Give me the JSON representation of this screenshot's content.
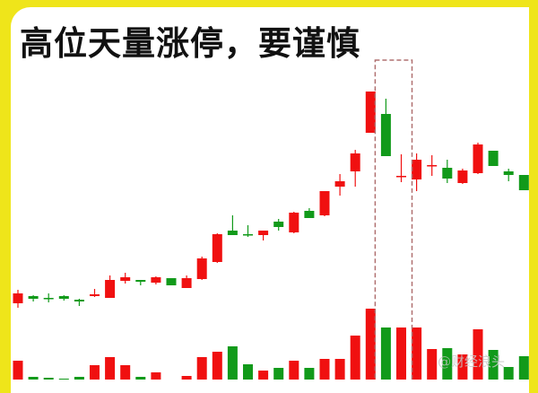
{
  "title": "高位天量涨停，要谨慎",
  "watermark": "@财经浪头",
  "colors": {
    "background": "#efe51a",
    "up": "#f01010",
    "down": "#119a1a",
    "highlight_box": "#b07070"
  },
  "chart_data": {
    "type": "candlestick",
    "title": "高位天量涨停，要谨慎",
    "axes_shown": false,
    "grid": false,
    "highlight": {
      "candles": [
        24,
        25
      ],
      "style": "dashed-box"
    },
    "candles": [
      {
        "o": 9.2,
        "c": 10.3,
        "h": 10.7,
        "l": 8.7,
        "dir": "up",
        "vol": 21
      },
      {
        "o": 10.0,
        "c": 9.7,
        "h": 10.1,
        "l": 9.4,
        "dir": "down",
        "vol": 3
      },
      {
        "o": 9.8,
        "c": 9.8,
        "h": 10.3,
        "l": 9.3,
        "dir": "down",
        "vol": 2
      },
      {
        "o": 10.0,
        "c": 9.7,
        "h": 10.1,
        "l": 9.5,
        "dir": "down",
        "vol": 1
      },
      {
        "o": 9.6,
        "c": 9.4,
        "h": 9.7,
        "l": 8.9,
        "dir": "down",
        "vol": 3
      },
      {
        "o": 10.0,
        "c": 10.2,
        "h": 10.8,
        "l": 9.9,
        "dir": "up",
        "vol": 16
      },
      {
        "o": 9.8,
        "c": 11.8,
        "h": 12.3,
        "l": 9.8,
        "dir": "up",
        "vol": 25
      },
      {
        "o": 11.7,
        "c": 12.1,
        "h": 12.6,
        "l": 11.4,
        "dir": "up",
        "vol": 16
      },
      {
        "o": 11.8,
        "c": 11.6,
        "h": 11.8,
        "l": 11.2,
        "dir": "down",
        "vol": 3
      },
      {
        "o": 11.5,
        "c": 12.1,
        "h": 12.2,
        "l": 11.3,
        "dir": "up",
        "vol": 8
      },
      {
        "o": 12.0,
        "c": 11.2,
        "h": 12.0,
        "l": 11.2,
        "dir": "down",
        "vol": 0
      },
      {
        "o": 10.9,
        "c": 12.0,
        "h": 12.3,
        "l": 10.9,
        "dir": "up",
        "vol": 4
      },
      {
        "o": 11.9,
        "c": 14.2,
        "h": 14.4,
        "l": 11.8,
        "dir": "up",
        "vol": 25
      },
      {
        "o": 13.8,
        "c": 16.9,
        "h": 17.0,
        "l": 13.7,
        "dir": "up",
        "vol": 31
      },
      {
        "o": 17.3,
        "c": 16.8,
        "h": 19.0,
        "l": 16.8,
        "dir": "down",
        "vol": 37
      },
      {
        "o": 16.9,
        "c": 16.9,
        "h": 17.9,
        "l": 16.6,
        "dir": "down",
        "vol": 17
      },
      {
        "o": 16.8,
        "c": 17.3,
        "h": 17.3,
        "l": 16.2,
        "dir": "up",
        "vol": 10
      },
      {
        "o": 18.3,
        "c": 17.7,
        "h": 18.6,
        "l": 17.3,
        "dir": "down",
        "vol": 13
      },
      {
        "o": 17.1,
        "c": 19.3,
        "h": 19.4,
        "l": 17.0,
        "dir": "up",
        "vol": 21
      },
      {
        "o": 19.5,
        "c": 18.7,
        "h": 19.8,
        "l": 18.7,
        "dir": "down",
        "vol": 13
      },
      {
        "o": 19.0,
        "c": 21.7,
        "h": 21.7,
        "l": 18.9,
        "dir": "up",
        "vol": 23
      },
      {
        "o": 22.2,
        "c": 22.8,
        "h": 23.6,
        "l": 21.2,
        "dir": "up",
        "vol": 23
      },
      {
        "o": 23.9,
        "c": 25.9,
        "h": 26.3,
        "l": 22.2,
        "dir": "up",
        "vol": 49
      },
      {
        "o": 28.2,
        "c": 32.8,
        "h": 32.8,
        "l": 28.2,
        "dir": "up",
        "vol": 79
      },
      {
        "o": 30.3,
        "c": 25.6,
        "h": 32.0,
        "l": 25.6,
        "dir": "down",
        "vol": 58
      },
      {
        "o": 23.4,
        "c": 23.4,
        "h": 25.8,
        "l": 22.7,
        "dir": "up",
        "vol": 58
      },
      {
        "o": 23.0,
        "c": 25.2,
        "h": 25.9,
        "l": 21.7,
        "dir": "up",
        "vol": 58
      },
      {
        "o": 24.6,
        "c": 24.6,
        "h": 25.7,
        "l": 23.4,
        "dir": "up",
        "vol": 34
      },
      {
        "o": 24.3,
        "c": 23.1,
        "h": 25.2,
        "l": 22.6,
        "dir": "down",
        "vol": 35
      },
      {
        "o": 22.6,
        "c": 24.0,
        "h": 24.2,
        "l": 22.5,
        "dir": "up",
        "vol": 28
      },
      {
        "o": 23.7,
        "c": 26.9,
        "h": 27.1,
        "l": 23.6,
        "dir": "up",
        "vol": 56
      },
      {
        "o": 26.2,
        "c": 24.5,
        "h": 26.2,
        "l": 24.5,
        "dir": "down",
        "vol": 33
      },
      {
        "o": 23.9,
        "c": 23.5,
        "h": 24.2,
        "l": 22.8,
        "dir": "down",
        "vol": 14
      },
      {
        "o": 23.5,
        "c": 21.8,
        "h": 23.5,
        "l": 21.8,
        "dir": "down",
        "vol": 26
      }
    ]
  }
}
